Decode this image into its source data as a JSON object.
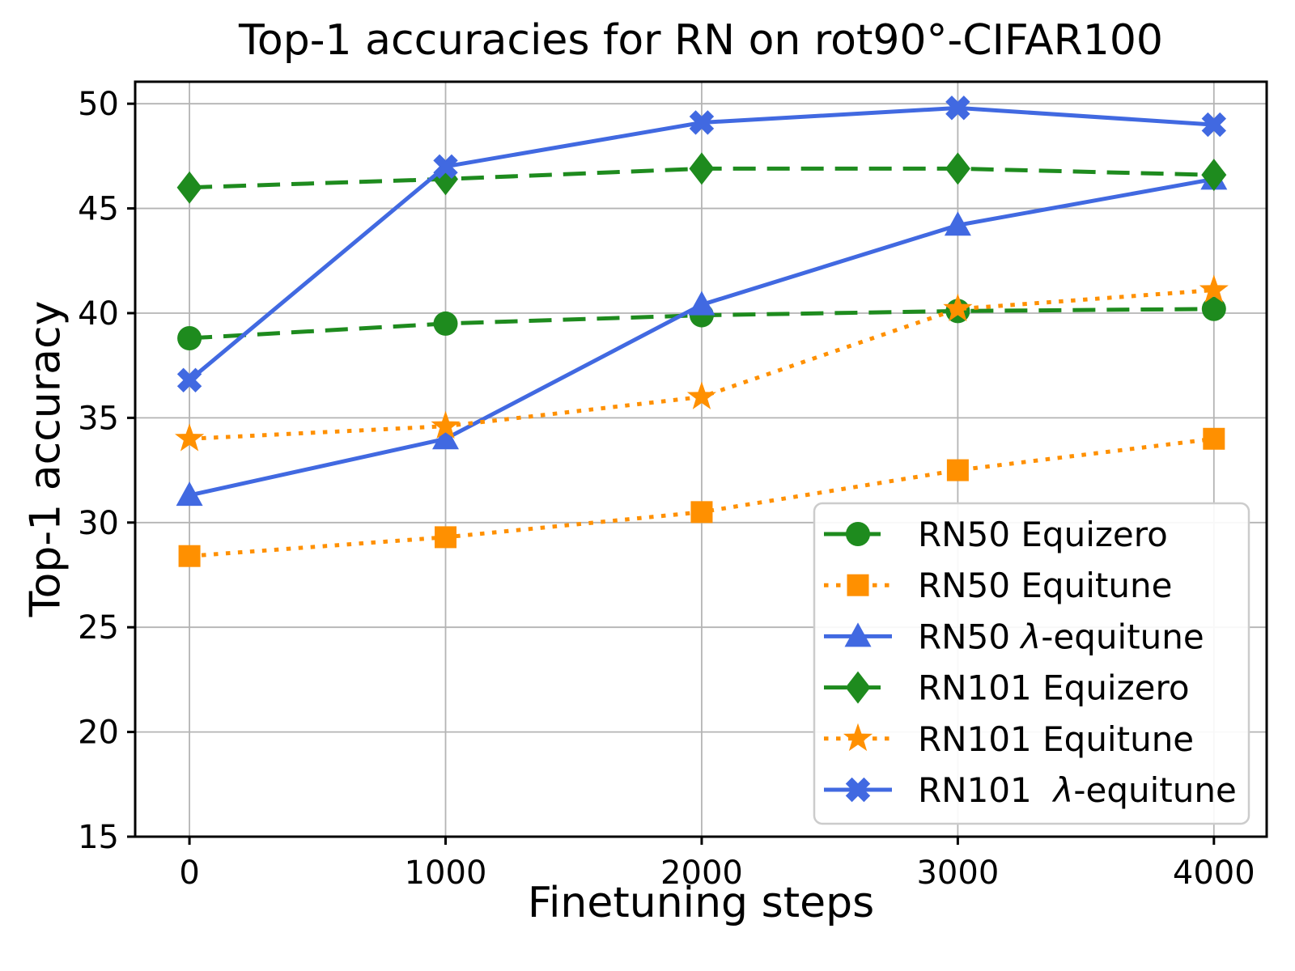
{
  "chart_data": {
    "type": "line",
    "title": "Top-1 accuracies for RN on rot90°-CIFAR100",
    "xlabel": "Finetuning steps",
    "ylabel": "Top-1 accuracy",
    "x": [
      0,
      1000,
      2000,
      3000,
      4000
    ],
    "xticks": [
      "0",
      "1000",
      "2000",
      "3000",
      "4000"
    ],
    "yticks": [
      "15",
      "20",
      "25",
      "30",
      "35",
      "40",
      "45",
      "50"
    ],
    "xlim": [
      -212,
      4206
    ],
    "ylim": [
      15,
      51.05
    ],
    "grid": true,
    "legend_position": "lower right",
    "series": [
      {
        "name": "RN50 Equizero",
        "color": "#1E8B1E",
        "linestyle": "dashed",
        "marker": "circle",
        "values": [
          38.8,
          39.5,
          39.9,
          40.1,
          40.2
        ]
      },
      {
        "name": "RN50 Equitune",
        "color": "#FF9000",
        "linestyle": "dotted",
        "marker": "square",
        "values": [
          28.4,
          29.3,
          30.5,
          32.5,
          34.0
        ]
      },
      {
        "name": "RN50 λ-equitune",
        "color": "#4169E1",
        "linestyle": "solid",
        "marker": "triangle",
        "values": [
          31.3,
          34.0,
          40.4,
          44.2,
          46.4
        ]
      },
      {
        "name": "RN101 Equizero",
        "color": "#1E8B1E",
        "linestyle": "dashed",
        "marker": "diamond",
        "values": [
          46.0,
          46.4,
          46.9,
          46.9,
          46.6
        ]
      },
      {
        "name": "RN101 Equitune",
        "color": "#FF9000",
        "linestyle": "dotted",
        "marker": "star",
        "values": [
          34.0,
          34.6,
          36.0,
          40.2,
          41.1
        ]
      },
      {
        "name": "RN101  λ-equitune",
        "color": "#4169E1",
        "linestyle": "solid",
        "marker": "x",
        "values": [
          36.8,
          47.0,
          49.1,
          49.8,
          49.0
        ]
      }
    ]
  },
  "style_colors": {
    "background": "#ffffff",
    "grid": "#b4b4b4",
    "axis": "#000000",
    "tick_label": "#000000",
    "legend_border": "#cccccc",
    "legend_background": "#ffffff"
  }
}
